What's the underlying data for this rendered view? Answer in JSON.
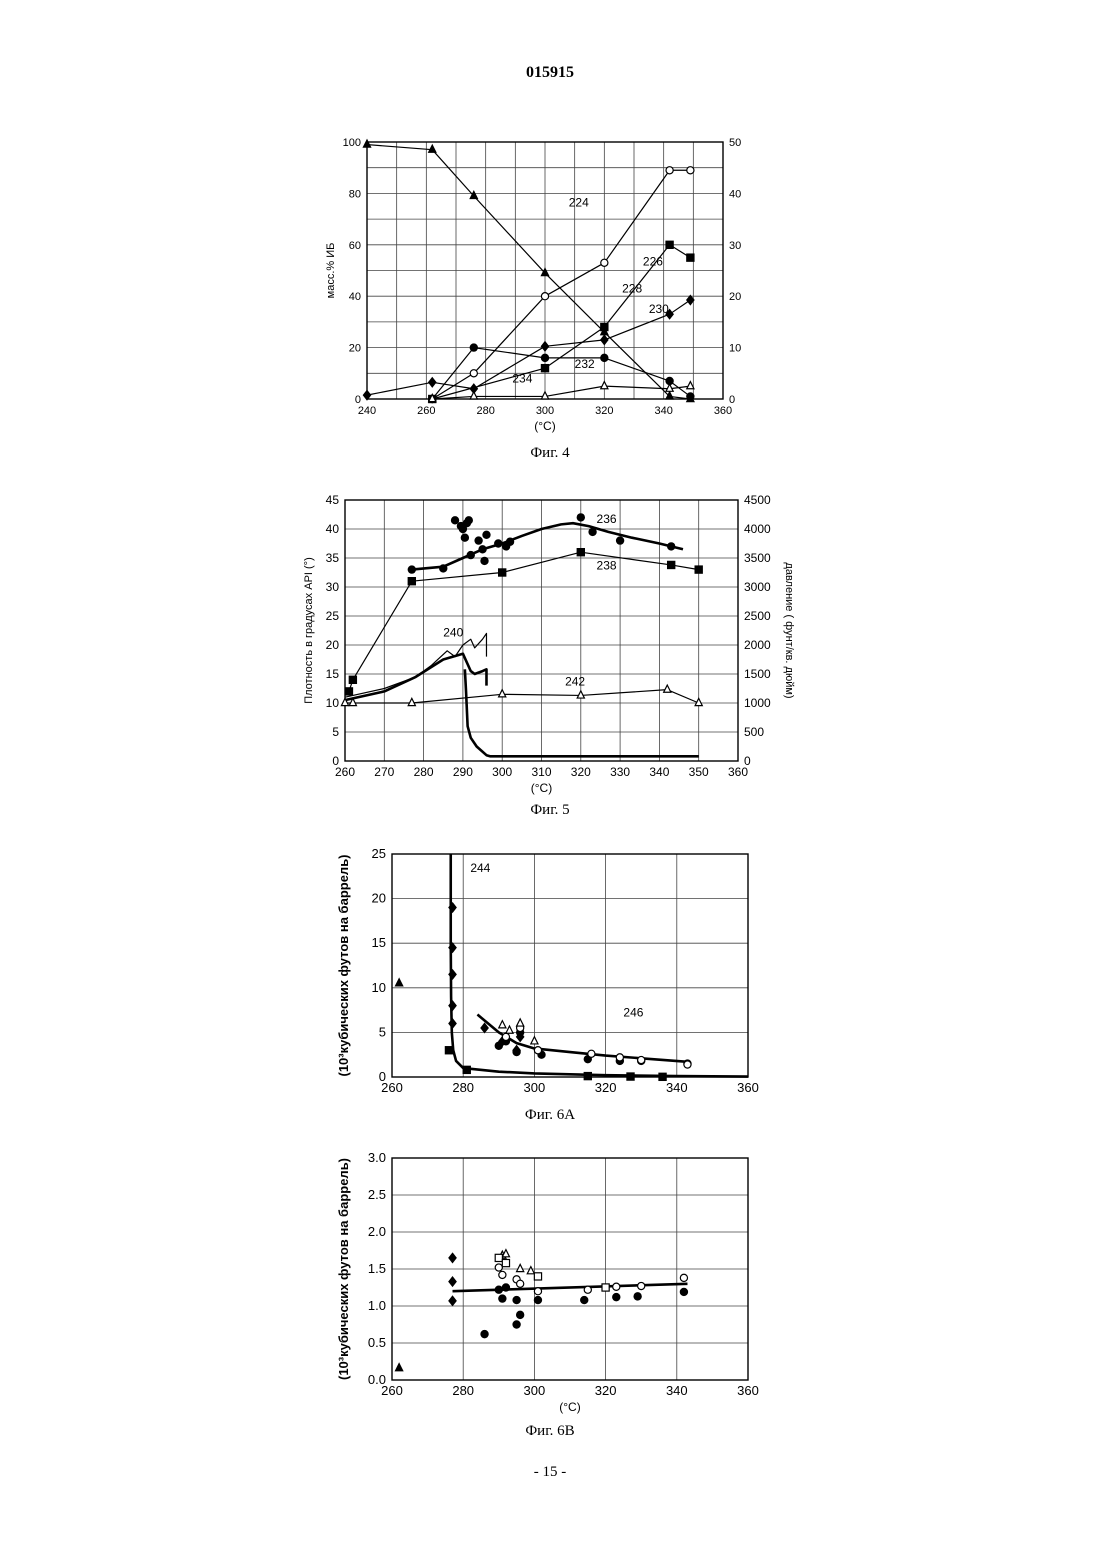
{
  "page": {
    "doc_number": "015915",
    "page_number": "- 15 -"
  },
  "chart_data": [
    {
      "type": "line",
      "caption": "Фиг. 4",
      "xlabel": "(°C)",
      "ylabel": "масс.% ИБ",
      "ylabel_right": "",
      "xlim": [
        240,
        360
      ],
      "xticks": [
        240,
        260,
        280,
        300,
        320,
        340,
        360
      ],
      "ylim": [
        0,
        100
      ],
      "yticks": [
        0,
        20,
        40,
        60,
        80,
        100
      ],
      "y2lim": [
        0,
        50
      ],
      "y2ticks": [
        0,
        10,
        20,
        30,
        40,
        50
      ],
      "grid": true,
      "series": [
        {
          "name": "224",
          "axis": "left",
          "marker": "triangle",
          "fill": true,
          "x": [
            240,
            262,
            276,
            300,
            320,
            342,
            349
          ],
          "y": [
            99,
            97,
            79,
            49,
            26,
            1,
            0
          ]
        },
        {
          "name": "226",
          "axis": "right",
          "marker": "circle",
          "fill": false,
          "x": [
            262,
            276,
            300,
            320,
            342,
            349
          ],
          "y": [
            0,
            5,
            20,
            26.5,
            44.5,
            44.5
          ]
        },
        {
          "name": "228",
          "axis": "right",
          "marker": "square",
          "fill": true,
          "x": [
            262,
            300,
            320,
            342,
            349
          ],
          "y": [
            0,
            6,
            14,
            30,
            27.5
          ]
        },
        {
          "name": "230",
          "axis": "left",
          "marker": "diamond",
          "fill": true,
          "x": [
            240,
            262,
            276,
            300,
            320,
            342,
            349
          ],
          "y": [
            1.5,
            6.5,
            4,
            20.5,
            23,
            33,
            38.5
          ]
        },
        {
          "name": "232",
          "axis": "right",
          "marker": "circle",
          "fill": true,
          "x": [
            262,
            276,
            300,
            320,
            342,
            349
          ],
          "y": [
            0,
            10,
            8,
            8,
            3.5,
            0.5
          ]
        },
        {
          "name": "234",
          "axis": "right",
          "marker": "triangle",
          "fill": false,
          "x": [
            262,
            276,
            300,
            320,
            342,
            349
          ],
          "y": [
            0,
            0.5,
            0.5,
            2.5,
            2,
            2.5
          ]
        }
      ],
      "labels": [
        {
          "text": "224",
          "x": 308,
          "y": 75
        },
        {
          "text": "226",
          "x": 333,
          "y": 52
        },
        {
          "text": "228",
          "x": 326,
          "y": 41.5
        },
        {
          "text": "230",
          "x": 335,
          "y": 33.5
        },
        {
          "text": "232",
          "x": 310,
          "y": 12
        },
        {
          "text": "234",
          "x": 289,
          "y": 6.5
        }
      ]
    },
    {
      "type": "line",
      "caption": "Фиг. 5",
      "xlabel": "(°C)",
      "ylabel": "Плотность в градусах API (°)",
      "ylabel_right": "давление ( фунт/кв. дюйм)",
      "xlim": [
        260,
        360
      ],
      "xticks": [
        260,
        270,
        280,
        290,
        300,
        310,
        320,
        330,
        340,
        350,
        360
      ],
      "ylim": [
        0,
        45
      ],
      "yticks": [
        0,
        5,
        10,
        15,
        20,
        25,
        30,
        35,
        40,
        45
      ],
      "y2lim": [
        0,
        4500
      ],
      "y2ticks": [
        0,
        500,
        1000,
        1500,
        2000,
        2500,
        3000,
        3500,
        4000,
        4500
      ],
      "grid": true,
      "series": [
        {
          "name": "236",
          "axis": "left",
          "marker": "none",
          "thick": true,
          "x": [
            277,
            285,
            290,
            295,
            300,
            305,
            310,
            315,
            318,
            322,
            327,
            333,
            340,
            346
          ],
          "y": [
            33,
            33.5,
            35,
            36.5,
            37.5,
            38.8,
            40,
            40.8,
            41,
            40.5,
            39.5,
            38.5,
            37.5,
            36.5
          ]
        },
        {
          "name": "236 data",
          "axis": "left",
          "marker": "circle",
          "fill": true,
          "noline": true,
          "x": [
            277,
            285,
            288,
            289.5,
            290,
            290.5,
            291,
            291.5,
            292,
            294,
            295,
            295.5,
            296,
            299,
            301,
            302,
            320,
            323,
            330,
            343
          ],
          "y": [
            33,
            33.2,
            41.5,
            40.5,
            40,
            38.5,
            41,
            41.5,
            35.5,
            38,
            36.5,
            34.5,
            39,
            37.5,
            37,
            37.8,
            42,
            39.5,
            38,
            37
          ]
        },
        {
          "name": "238",
          "axis": "left",
          "marker": "square",
          "fill": true,
          "x": [
            261,
            262,
            277,
            300,
            320,
            343,
            350
          ],
          "y": [
            12,
            14,
            31,
            32.5,
            36,
            33.8,
            33
          ]
        },
        {
          "name": "240",
          "axis": "left",
          "marker": "none",
          "x": [
            260,
            270,
            278,
            282,
            286,
            288,
            290,
            292,
            293,
            295,
            296,
            296
          ],
          "y": [
            11,
            12.5,
            14.5,
            16.5,
            19,
            18,
            20,
            21,
            19.5,
            21,
            22,
            18
          ]
        },
        {
          "name": "240b",
          "axis": "left",
          "marker": "none",
          "thick": true,
          "x": [
            260,
            270,
            278,
            285,
            290,
            292,
            293,
            295,
            296,
            296
          ],
          "y": [
            10.5,
            12,
            14.5,
            17.5,
            18.5,
            15.5,
            15,
            15.5,
            15.8,
            13
          ]
        },
        {
          "name": "pressure",
          "axis": "right",
          "marker": "none",
          "thick": true,
          "x": [
            290.5,
            290.8,
            291.2,
            292,
            293.5,
            296,
            297,
            300,
            320,
            340,
            350
          ],
          "y": [
            1580,
            1200,
            600,
            400,
            250,
            100,
            80,
            80,
            80,
            80,
            80
          ]
        },
        {
          "name": "242",
          "axis": "left",
          "marker": "triangle",
          "fill": false,
          "x": [
            260,
            262,
            277,
            300,
            320,
            342,
            350
          ],
          "y": [
            10,
            10,
            10,
            11.5,
            11.3,
            12.3,
            10
          ]
        }
      ],
      "labels": [
        {
          "text": "236",
          "x": 324,
          "y": 41
        },
        {
          "text": "238",
          "x": 324,
          "y": 33
        },
        {
          "text": "240",
          "x": 285,
          "y": 21.5
        },
        {
          "text": "242",
          "x": 316,
          "y": 13
        }
      ]
    },
    {
      "type": "scatter",
      "caption": "Фиг. 6A",
      "xlabel": "",
      "ylabel": "(10³кубических футов на баррель)",
      "ylabel_right": "",
      "xlim": [
        260,
        360
      ],
      "xticks": [
        260,
        280,
        300,
        320,
        340,
        360
      ],
      "ylim": [
        0,
        25
      ],
      "yticks": [
        0,
        5,
        10,
        15,
        20,
        25
      ],
      "grid": true,
      "series": [
        {
          "name": "244",
          "axis": "left",
          "marker": "none",
          "thick": true,
          "x": [
            276.5,
            276.5,
            276.6,
            276.8,
            277.2,
            278,
            280,
            290,
            300,
            320,
            340,
            360
          ],
          "y": [
            25,
            15,
            9,
            5,
            3,
            1.8,
            1,
            0.6,
            0.4,
            0.2,
            0.1,
            0.05
          ]
        },
        {
          "name": "246",
          "axis": "left",
          "marker": "none",
          "thick": true,
          "x": [
            284,
            290,
            295,
            300,
            310,
            320,
            330,
            343
          ],
          "y": [
            7,
            5,
            3.8,
            3.2,
            2.8,
            2.4,
            2.1,
            1.7
          ]
        },
        {
          "name": "diamonds",
          "axis": "left",
          "marker": "diamond",
          "fill": true,
          "noline": true,
          "x": [
            277,
            277,
            277,
            277,
            277,
            286,
            291,
            295,
            296
          ],
          "y": [
            19,
            14.5,
            11.5,
            8,
            6,
            5.5,
            4,
            3,
            4.5
          ]
        },
        {
          "name": "tri-fill",
          "axis": "left",
          "marker": "triangle",
          "fill": true,
          "noline": true,
          "x": [
            262
          ],
          "y": [
            10.5
          ]
        },
        {
          "name": "filled-circles",
          "axis": "left",
          "marker": "circle",
          "fill": true,
          "noline": true,
          "x": [
            290,
            292,
            295,
            296,
            302,
            315,
            324,
            330,
            343
          ],
          "y": [
            3.5,
            4,
            2.8,
            5,
            2.5,
            2,
            1.8,
            1.8,
            1.5
          ]
        },
        {
          "name": "open-circles",
          "axis": "left",
          "marker": "circle",
          "fill": false,
          "noline": true,
          "x": [
            292,
            296,
            301,
            316,
            324,
            330,
            343
          ],
          "y": [
            4.5,
            5.5,
            3,
            2.6,
            2.2,
            1.9,
            1.4
          ]
        },
        {
          "name": "open-triangles",
          "axis": "left",
          "marker": "triangle",
          "fill": false,
          "noline": true,
          "x": [
            291,
            293,
            296,
            300
          ],
          "y": [
            5.8,
            5.2,
            6,
            4
          ]
        },
        {
          "name": "squares",
          "axis": "left",
          "marker": "square",
          "fill": true,
          "noline": true,
          "x": [
            276,
            281,
            315,
            327,
            336
          ],
          "y": [
            3,
            0.8,
            0.1,
            0.05,
            0.02
          ]
        }
      ],
      "labels": [
        {
          "text": "244",
          "x": 282,
          "y": 23
        },
        {
          "text": "246",
          "x": 325,
          "y": 6.8
        }
      ]
    },
    {
      "type": "scatter",
      "caption": "Фиг. 6B",
      "xlabel": "(°C)",
      "ylabel": "(10³кубических футов на баррель)",
      "ylabel_right": "",
      "xlim": [
        260,
        360
      ],
      "xticks": [
        260,
        280,
        300,
        320,
        340,
        360
      ],
      "ylim": [
        0,
        3.0
      ],
      "yticks": [
        0.0,
        0.5,
        1.0,
        1.5,
        2.0,
        2.5,
        3.0
      ],
      "yfmt": 1,
      "grid": true,
      "series": [
        {
          "name": "trend",
          "axis": "left",
          "marker": "none",
          "thick": true,
          "x": [
            277,
            343
          ],
          "y": [
            1.2,
            1.3
          ]
        },
        {
          "name": "diamonds",
          "axis": "left",
          "marker": "diamond",
          "fill": true,
          "noline": true,
          "x": [
            277,
            277,
            277
          ],
          "y": [
            1.65,
            1.33,
            1.07
          ]
        },
        {
          "name": "tri-fill",
          "axis": "left",
          "marker": "triangle",
          "fill": true,
          "noline": true,
          "x": [
            262
          ],
          "y": [
            0.16
          ]
        },
        {
          "name": "filled-circles",
          "axis": "left",
          "marker": "circle",
          "fill": true,
          "noline": true,
          "x": [
            286,
            290,
            291,
            292,
            295,
            295,
            296,
            301,
            314,
            323,
            329,
            342
          ],
          "y": [
            0.62,
            1.22,
            1.1,
            1.25,
            1.08,
            0.75,
            0.88,
            1.08,
            1.08,
            1.12,
            1.13,
            1.19
          ]
        },
        {
          "name": "open-circles",
          "axis": "left",
          "marker": "circle",
          "fill": false,
          "noline": true,
          "x": [
            290,
            291,
            295,
            296,
            301,
            315,
            323,
            330,
            342
          ],
          "y": [
            1.52,
            1.42,
            1.36,
            1.3,
            1.2,
            1.22,
            1.26,
            1.27,
            1.38
          ]
        },
        {
          "name": "open-triangles",
          "axis": "left",
          "marker": "triangle",
          "fill": false,
          "noline": true,
          "x": [
            291,
            292,
            296,
            299
          ],
          "y": [
            1.68,
            1.7,
            1.5,
            1.47
          ]
        },
        {
          "name": "open-squares",
          "axis": "left",
          "marker": "square",
          "fill": false,
          "noline": true,
          "x": [
            290,
            292,
            301,
            320
          ],
          "y": [
            1.65,
            1.58,
            1.4,
            1.25
          ]
        }
      ],
      "labels": []
    }
  ]
}
